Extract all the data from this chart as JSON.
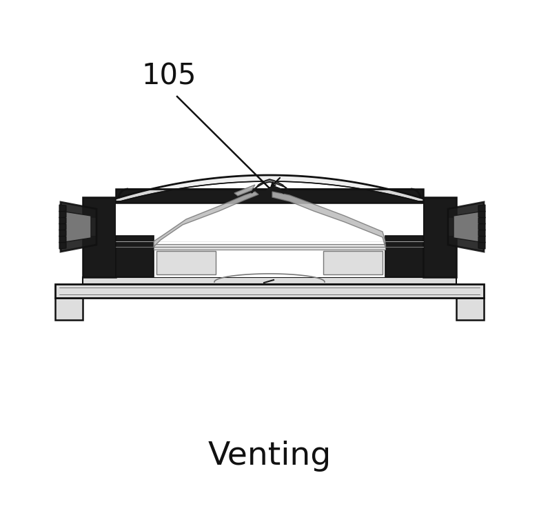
{
  "title": "Venting",
  "label": "105",
  "bg_color": "#ffffff",
  "line_color": "#111111",
  "dark_gray": "#1a1a1a",
  "dark_gray2": "#333333",
  "mid_gray": "#777777",
  "light_gray": "#bbbbbb",
  "very_light_gray": "#dedede",
  "pale_gray": "#eeeeee",
  "title_fontsize": 34,
  "label_fontsize": 30,
  "fig_width": 7.82,
  "fig_height": 7.44,
  "dpi": 100
}
